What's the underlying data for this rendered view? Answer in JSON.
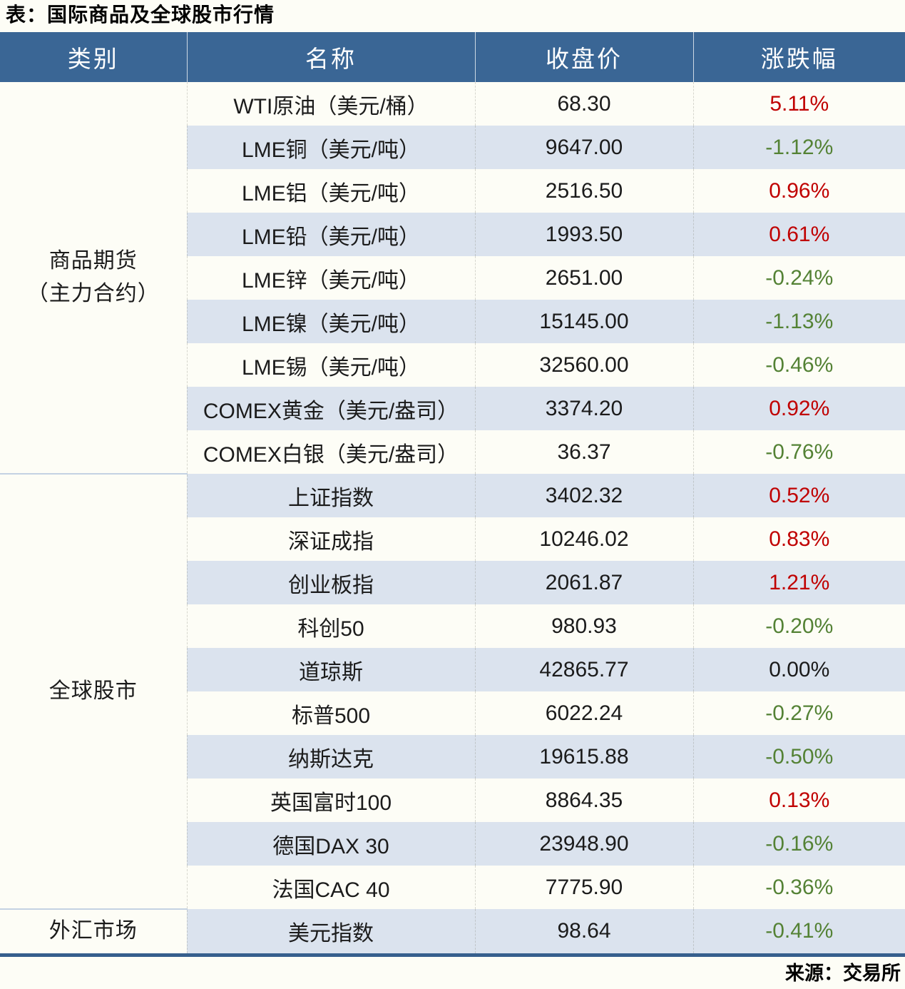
{
  "title": "表：国际商品及全球股市行情",
  "source": "来源：交易所",
  "colors": {
    "header_bg": "#3a6695",
    "stripe_bg": "#dbe3ee",
    "row_bg": "#fdfdf6",
    "positive": "#c00000",
    "negative": "#548235",
    "flat": "#1b1b1b",
    "bottom_border": "#365f8d"
  },
  "table": {
    "columns": [
      "类别",
      "名称",
      "收盘价",
      "涨跌幅"
    ],
    "groups": [
      {
        "category": [
          "商品期货",
          "（主力合约）"
        ],
        "rows": [
          {
            "name": "WTI原油（美元/桶）",
            "close": "68.30",
            "change": "5.11%",
            "direction": "up"
          },
          {
            "name": "LME铜（美元/吨）",
            "close": "9647.00",
            "change": "-1.12%",
            "direction": "down"
          },
          {
            "name": "LME铝（美元/吨）",
            "close": "2516.50",
            "change": "0.96%",
            "direction": "up"
          },
          {
            "name": "LME铅（美元/吨）",
            "close": "1993.50",
            "change": "0.61%",
            "direction": "up"
          },
          {
            "name": "LME锌（美元/吨）",
            "close": "2651.00",
            "change": "-0.24%",
            "direction": "down"
          },
          {
            "name": "LME镍（美元/吨）",
            "close": "15145.00",
            "change": "-1.13%",
            "direction": "down"
          },
          {
            "name": "LME锡（美元/吨）",
            "close": "32560.00",
            "change": "-0.46%",
            "direction": "down"
          },
          {
            "name": "COMEX黄金（美元/盎司）",
            "close": "3374.20",
            "change": "0.92%",
            "direction": "up"
          },
          {
            "name": "COMEX白银（美元/盎司）",
            "close": "36.37",
            "change": "-0.76%",
            "direction": "down"
          }
        ]
      },
      {
        "category": [
          "全球股市"
        ],
        "rows": [
          {
            "name": "上证指数",
            "close": "3402.32",
            "change": "0.52%",
            "direction": "up"
          },
          {
            "name": "深证成指",
            "close": "10246.02",
            "change": "0.83%",
            "direction": "up"
          },
          {
            "name": "创业板指",
            "close": "2061.87",
            "change": "1.21%",
            "direction": "up"
          },
          {
            "name": "科创50",
            "close": "980.93",
            "change": "-0.20%",
            "direction": "down"
          },
          {
            "name": "道琼斯",
            "close": "42865.77",
            "change": "0.00%",
            "direction": "flat"
          },
          {
            "name": "标普500",
            "close": "6022.24",
            "change": "-0.27%",
            "direction": "down"
          },
          {
            "name": "纳斯达克",
            "close": "19615.88",
            "change": "-0.50%",
            "direction": "down"
          },
          {
            "name": "英国富时100",
            "close": "8864.35",
            "change": "0.13%",
            "direction": "up"
          },
          {
            "name": "德国DAX 30",
            "close": "23948.90",
            "change": "-0.16%",
            "direction": "down"
          },
          {
            "name": "法国CAC 40",
            "close": "7775.90",
            "change": "-0.36%",
            "direction": "down"
          }
        ]
      },
      {
        "category": [
          "外汇市场"
        ],
        "rows": [
          {
            "name": "美元指数",
            "close": "98.64",
            "change": "-0.41%",
            "direction": "down"
          }
        ]
      }
    ]
  }
}
